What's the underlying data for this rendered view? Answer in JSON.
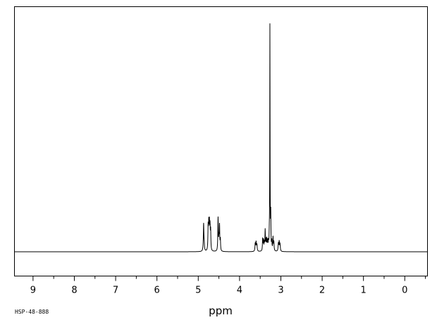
{
  "chart_data": {
    "type": "line",
    "title": "",
    "xlabel": "ppm",
    "ylabel": "",
    "xlim": [
      9.45,
      -0.55
    ],
    "ylim": [
      -0.11,
      1.0
    ],
    "x_reversed": true,
    "grid": false,
    "legend": "none",
    "xticks": [
      9,
      8,
      7,
      6,
      5,
      4,
      3,
      2,
      1,
      0
    ],
    "xtick_labels": [
      "9",
      "8",
      "7",
      "6",
      "5",
      "4",
      "3",
      "2",
      "1",
      "0"
    ],
    "baseline": 0,
    "peaks": [
      {
        "x": 4.87,
        "y": 0.125,
        "w": 0.008
      },
      {
        "x": 4.855,
        "y": 0.02,
        "w": 0.006
      },
      {
        "x": 4.76,
        "y": 0.105,
        "w": 0.007
      },
      {
        "x": 4.745,
        "y": 0.11,
        "w": 0.007
      },
      {
        "x": 4.73,
        "y": 0.11,
        "w": 0.007
      },
      {
        "x": 4.715,
        "y": 0.1,
        "w": 0.007
      },
      {
        "x": 4.7,
        "y": 0.085,
        "w": 0.006
      },
      {
        "x": 4.52,
        "y": 0.148,
        "w": 0.007
      },
      {
        "x": 4.5,
        "y": 0.05,
        "w": 0.006
      },
      {
        "x": 4.485,
        "y": 0.112,
        "w": 0.007
      },
      {
        "x": 4.465,
        "y": 0.05,
        "w": 0.006
      },
      {
        "x": 3.62,
        "y": 0.035,
        "w": 0.008
      },
      {
        "x": 3.6,
        "y": 0.04,
        "w": 0.008
      },
      {
        "x": 3.58,
        "y": 0.03,
        "w": 0.008
      },
      {
        "x": 3.44,
        "y": 0.055,
        "w": 0.007
      },
      {
        "x": 3.42,
        "y": 0.045,
        "w": 0.007
      },
      {
        "x": 3.4,
        "y": 0.035,
        "w": 0.007
      },
      {
        "x": 3.38,
        "y": 0.09,
        "w": 0.006
      },
      {
        "x": 3.36,
        "y": 0.045,
        "w": 0.007
      },
      {
        "x": 3.34,
        "y": 0.05,
        "w": 0.007
      },
      {
        "x": 3.32,
        "y": 0.04,
        "w": 0.007
      },
      {
        "x": 3.3,
        "y": 0.035,
        "w": 0.007
      },
      {
        "x": 3.28,
        "y": 0.05,
        "w": 0.006
      },
      {
        "x": 3.265,
        "y": 1.0,
        "w": 0.004
      },
      {
        "x": 3.245,
        "y": 0.155,
        "w": 0.005
      },
      {
        "x": 3.22,
        "y": 0.04,
        "w": 0.007
      },
      {
        "x": 3.19,
        "y": 0.06,
        "w": 0.007
      },
      {
        "x": 3.17,
        "y": 0.04,
        "w": 0.007
      },
      {
        "x": 3.06,
        "y": 0.035,
        "w": 0.008
      },
      {
        "x": 3.04,
        "y": 0.042,
        "w": 0.008
      },
      {
        "x": 3.02,
        "y": 0.03,
        "w": 0.008
      }
    ]
  },
  "footnote": "HSP-48-888"
}
